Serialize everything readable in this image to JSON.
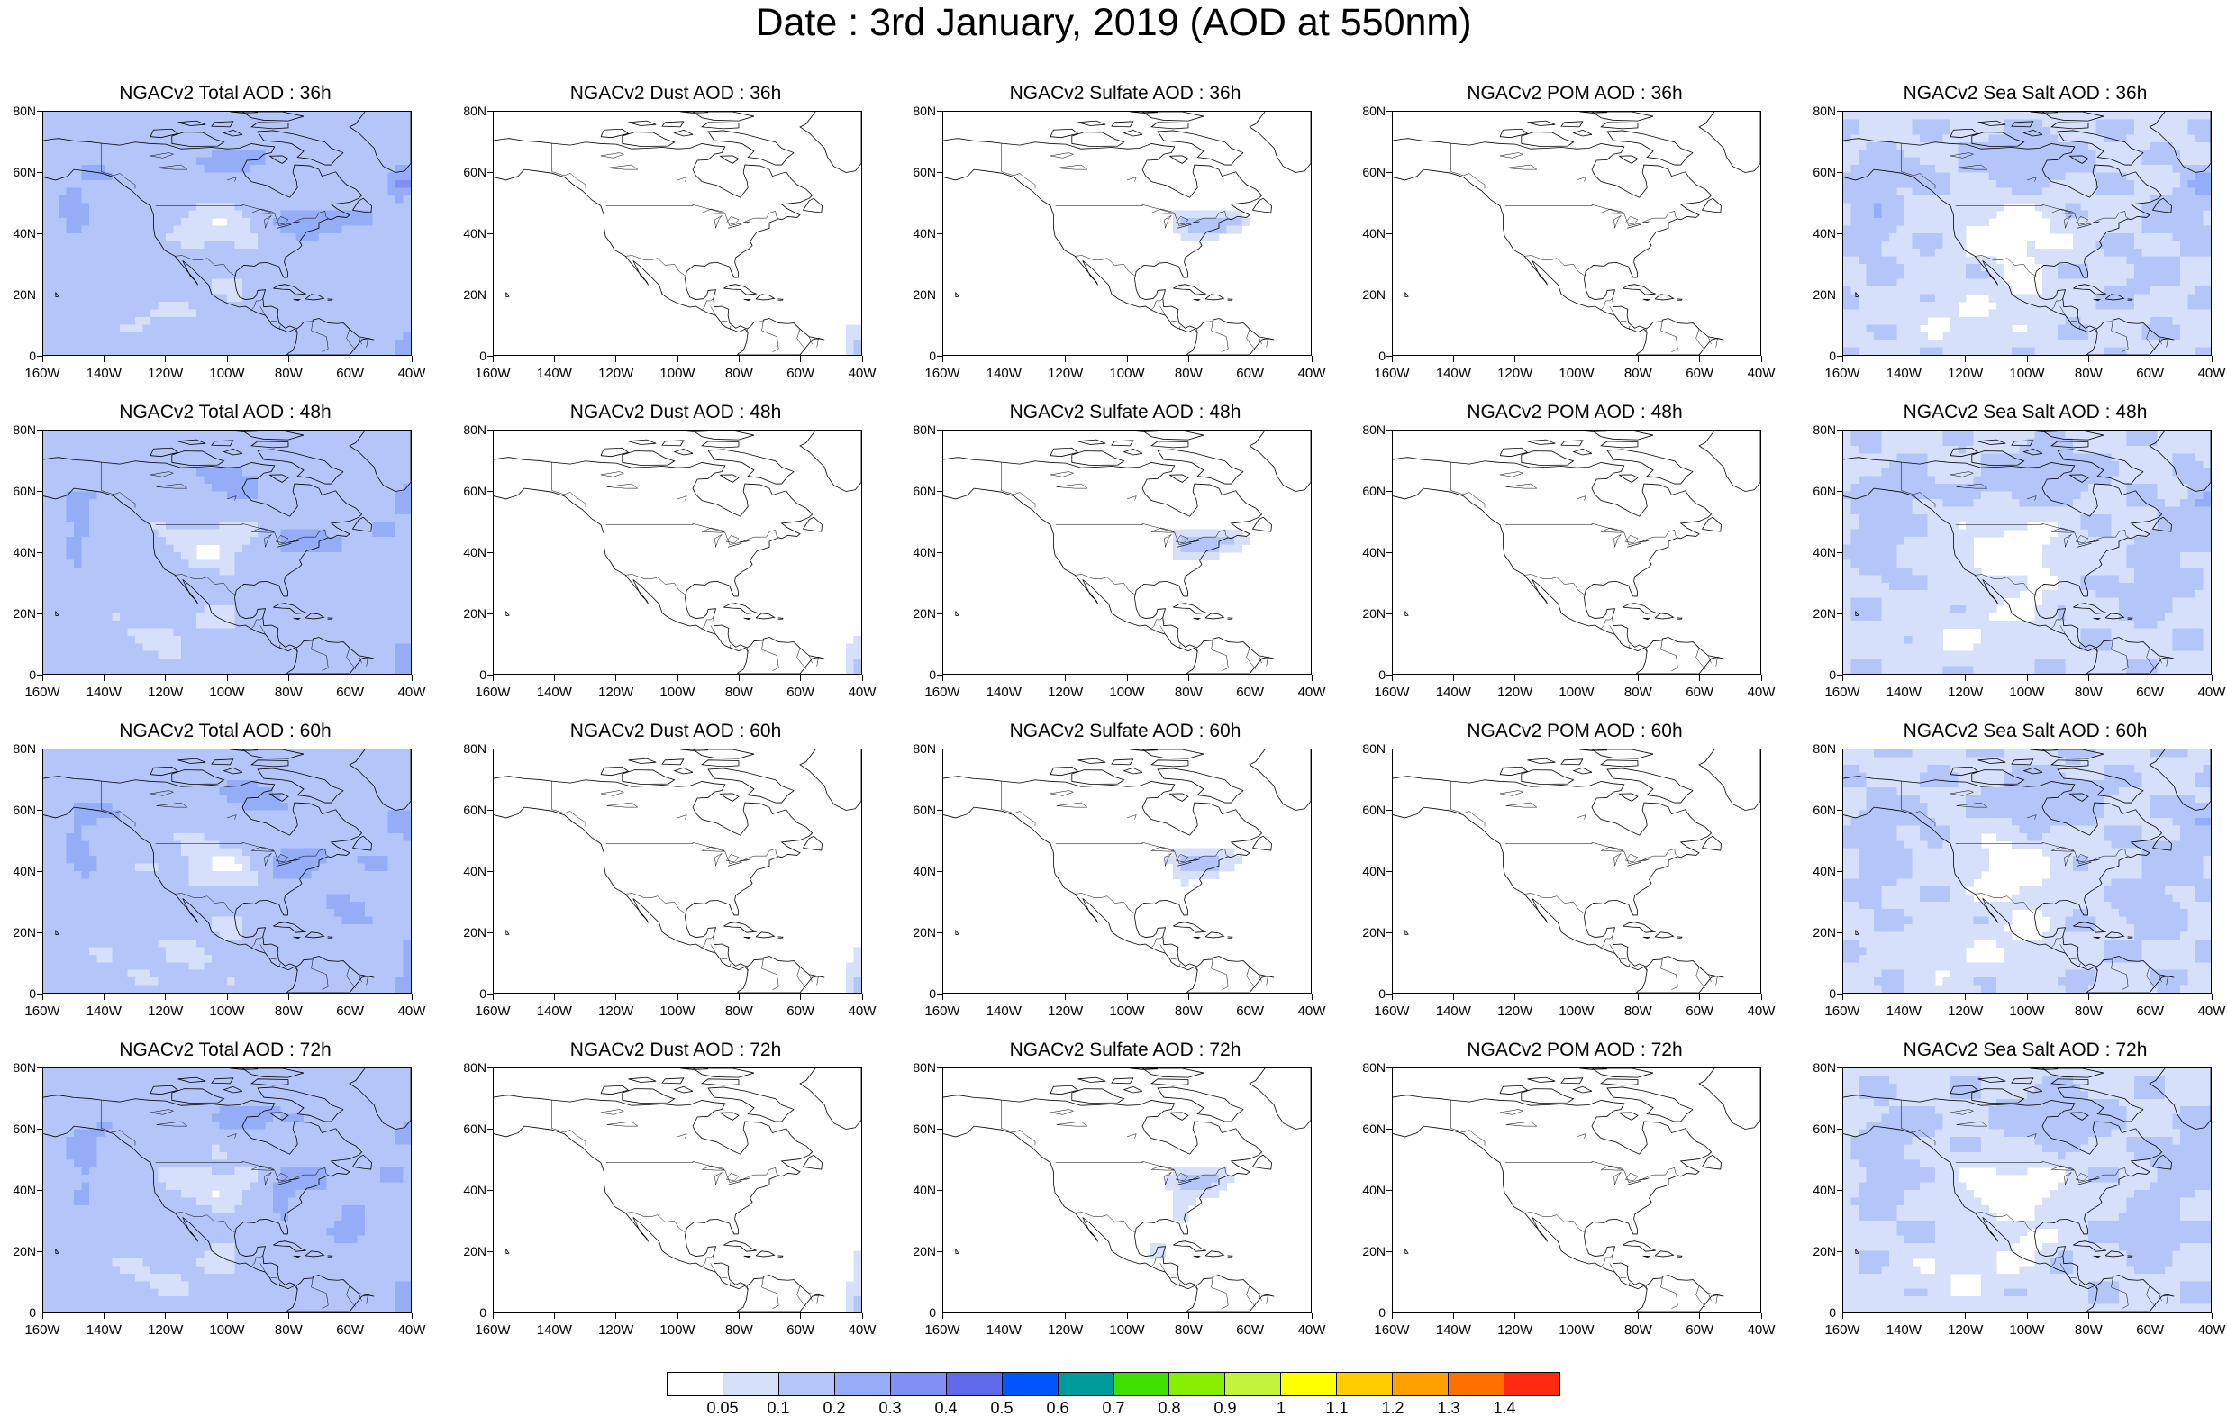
{
  "title": "Date : 3rd January, 2019 (AOD at 550nm)",
  "rows": [
    {
      "hour": "36h",
      "panels": [
        {
          "title": "NGACv2 Total AOD : 36h",
          "field": "total",
          "hours": 36
        },
        {
          "title": "NGACv2 Dust AOD : 36h",
          "field": "dust",
          "hours": 36
        },
        {
          "title": "NGACv2 Sulfate AOD : 36h",
          "field": "sulfate",
          "hours": 36
        },
        {
          "title": "NGACv2 POM AOD : 36h",
          "field": "pom",
          "hours": 36
        },
        {
          "title": "NGACv2 Sea Salt AOD : 36h",
          "field": "seasalt",
          "hours": 36
        }
      ]
    },
    {
      "hour": "48h",
      "panels": [
        {
          "title": "NGACv2 Total AOD : 48h",
          "field": "total",
          "hours": 48
        },
        {
          "title": "NGACv2 Dust AOD : 48h",
          "field": "dust",
          "hours": 48
        },
        {
          "title": "NGACv2 Sulfate AOD : 48h",
          "field": "sulfate",
          "hours": 48
        },
        {
          "title": "NGACv2 POM AOD : 48h",
          "field": "pom",
          "hours": 48
        },
        {
          "title": "NGACv2 Sea Salt AOD : 48h",
          "field": "seasalt",
          "hours": 48
        }
      ]
    },
    {
      "hour": "60h",
      "panels": [
        {
          "title": "NGACv2 Total AOD : 60h",
          "field": "total",
          "hours": 60
        },
        {
          "title": "NGACv2 Dust AOD : 60h",
          "field": "dust",
          "hours": 60
        },
        {
          "title": "NGACv2 Sulfate AOD : 60h",
          "field": "sulfate",
          "hours": 60
        },
        {
          "title": "NGACv2 POM AOD : 60h",
          "field": "pom",
          "hours": 60
        },
        {
          "title": "NGACv2 Sea Salt AOD : 60h",
          "field": "seasalt",
          "hours": 60
        }
      ]
    },
    {
      "hour": "72h",
      "panels": [
        {
          "title": "NGACv2 Total AOD : 72h",
          "field": "total",
          "hours": 72
        },
        {
          "title": "NGACv2 Dust AOD : 72h",
          "field": "dust",
          "hours": 72
        },
        {
          "title": "NGACv2 Sulfate AOD : 72h",
          "field": "sulfate",
          "hours": 72
        },
        {
          "title": "NGACv2 POM AOD : 72h",
          "field": "pom",
          "hours": 72
        },
        {
          "title": "NGACv2 Sea Salt  AOD : 72h",
          "field": "seasalt",
          "hours": 72
        }
      ]
    }
  ],
  "lat_ticks": [
    "80N",
    "60N",
    "40N",
    "20N",
    "0"
  ],
  "lon_ticks": [
    "160W",
    "140W",
    "120W",
    "100W",
    "80W",
    "60W",
    "40W"
  ],
  "colorbar": {
    "colors": [
      "#ffffff",
      "#d6e0fb",
      "#b4c6f9",
      "#95acf7",
      "#7f8ff2",
      "#5e6aea",
      "#0055ff",
      "#009b9b",
      "#3de000",
      "#86ee00",
      "#c3f33a",
      "#ffff00",
      "#ffcc00",
      "#ff9f00",
      "#ff7000",
      "#ff2a10"
    ],
    "labels": [
      "0.05",
      "0.1",
      "0.2",
      "0.3",
      "0.4",
      "0.5",
      "0.6",
      "0.7",
      "0.8",
      "0.9",
      "1",
      "1.1",
      "1.2",
      "1.3",
      "1.4"
    ]
  }
}
